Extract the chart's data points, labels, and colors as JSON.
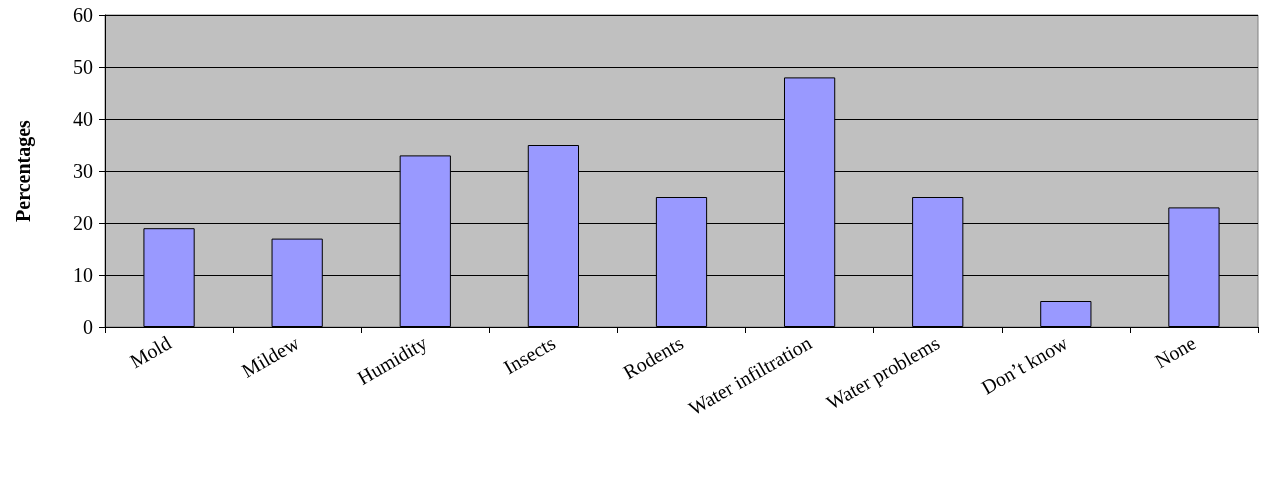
{
  "chart_data": {
    "type": "bar",
    "ylabel": "Percentages",
    "categories": [
      "Mold",
      "Mildew",
      "Humidity",
      "Insects",
      "Rodents",
      "Water infiltration",
      "Water problems",
      "Don’t know",
      "None"
    ],
    "values": [
      19,
      17,
      33,
      35,
      25,
      48,
      25,
      5,
      23
    ],
    "color": "#9999ff",
    "ylim": [
      0,
      60
    ],
    "yticks": [
      0,
      10,
      20,
      30,
      40,
      50,
      60
    ],
    "grid": "y"
  }
}
